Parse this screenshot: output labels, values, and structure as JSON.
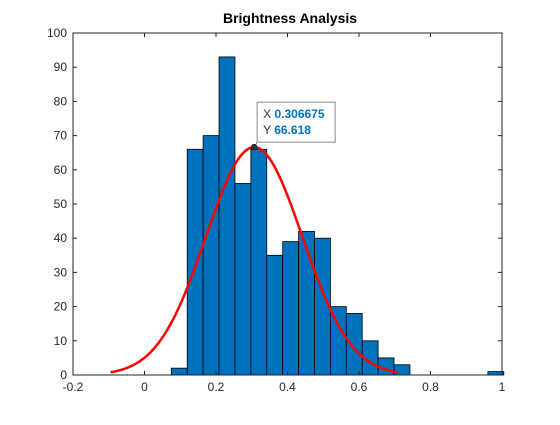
{
  "chart_data": {
    "type": "histogram",
    "title": "Brightness Analysis",
    "xlabel": "",
    "ylabel": "",
    "xlim": [
      -0.2,
      1.0
    ],
    "ylim": [
      0,
      100
    ],
    "xticks": [
      -0.2,
      0,
      0.2,
      0.4,
      0.6,
      0.8,
      1
    ],
    "xtick_labels": [
      "-0.2",
      "0",
      "0.2",
      "0.4",
      "0.6",
      "0.8",
      "1"
    ],
    "yticks": [
      0,
      10,
      20,
      30,
      40,
      50,
      60,
      70,
      80,
      90,
      100
    ],
    "ytick_labels": [
      "0",
      "10",
      "20",
      "30",
      "40",
      "50",
      "60",
      "70",
      "80",
      "90",
      "100"
    ],
    "grid": false,
    "bin_width": 0.0445,
    "bins": [
      {
        "start": 0.075,
        "value": 2
      },
      {
        "start": 0.1195,
        "value": 66
      },
      {
        "start": 0.164,
        "value": 70
      },
      {
        "start": 0.2085,
        "value": 93
      },
      {
        "start": 0.253,
        "value": 56
      },
      {
        "start": 0.2975,
        "value": 66
      },
      {
        "start": 0.342,
        "value": 35
      },
      {
        "start": 0.3865,
        "value": 39
      },
      {
        "start": 0.431,
        "value": 42
      },
      {
        "start": 0.4755,
        "value": 40
      },
      {
        "start": 0.52,
        "value": 20
      },
      {
        "start": 0.5645,
        "value": 18
      },
      {
        "start": 0.609,
        "value": 10
      },
      {
        "start": 0.6535,
        "value": 5
      },
      {
        "start": 0.698,
        "value": 3
      },
      {
        "start": 0.9605,
        "value": 1
      }
    ],
    "bar_color": "#0072BD",
    "bar_edge_color": "#000000",
    "fit_curve": {
      "type": "normal",
      "color": "#FF0000",
      "mean": 0.306675,
      "peak": 66.618,
      "sigma": 0.135,
      "x_range": [
        -0.095,
        0.71
      ]
    },
    "datatip": {
      "x_label": "X",
      "x_value": "0.306675",
      "y_label": "Y",
      "y_value": "66.618",
      "x": 0.306675,
      "y": 66.618,
      "value_color": "#0072BD"
    }
  }
}
